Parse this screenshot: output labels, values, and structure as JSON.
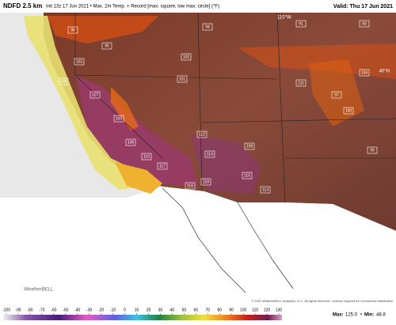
{
  "header": {
    "title": "NDFD 2.5 km",
    "subtitle": "Init 13z 17 Jun 2021 • Max. 2m Temp. + Record [max: square, low max: circle] (°F)",
    "valid": "Valid: Thu 17 Jun 2021"
  },
  "map": {
    "lat_label": "40°N",
    "lon_label": "110°W",
    "logo": "WeatherBELL",
    "copyright": "© 2021 WeatherBELL Analytics, LLC. All rights reserved. License required for commercial distribution",
    "labels": [
      "98",
      "94",
      "91",
      "95",
      "103",
      "102",
      "108",
      "107",
      "106",
      "105",
      "112",
      "114",
      "117",
      "116",
      "115",
      "118",
      "113",
      "110",
      "101",
      "99",
      "97",
      "93",
      "109",
      "111",
      "104",
      "100"
    ]
  },
  "colorbar": {
    "ticks": [
      -100,
      -90,
      -80,
      -70,
      -60,
      -50,
      -40,
      -30,
      -20,
      -10,
      0,
      10,
      20,
      30,
      40,
      50,
      60,
      70,
      80,
      90,
      100,
      110,
      120,
      130
    ]
  },
  "stats": {
    "max_label": "Max:",
    "max": 125.0,
    "min_label": "Min:",
    "min": 48.8
  }
}
